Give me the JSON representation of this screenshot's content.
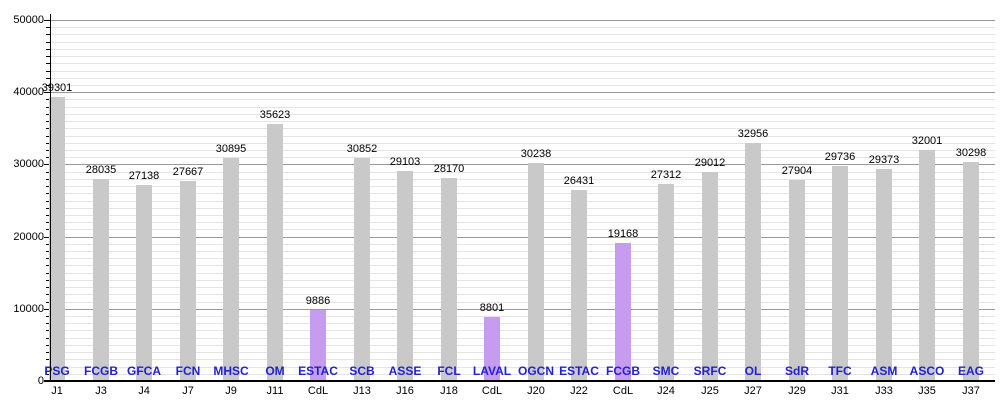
{
  "chart_data": {
    "type": "bar",
    "title": "",
    "xlabel": "",
    "ylabel": "",
    "ylim": [
      0,
      50000
    ],
    "y_major_step": 10000,
    "y_minor_step": 1000,
    "y_ticks": [
      0,
      10000,
      20000,
      30000,
      40000,
      50000
    ],
    "grid": "on",
    "legend_position": "none",
    "bars": [
      {
        "team": "PSG",
        "match": "J1",
        "value": 39301,
        "highlight": false
      },
      {
        "team": "FCGB",
        "match": "J3",
        "value": 28035,
        "highlight": false
      },
      {
        "team": "GFCA",
        "match": "J4",
        "value": 27138,
        "highlight": false
      },
      {
        "team": "FCN",
        "match": "J7",
        "value": 27667,
        "highlight": false
      },
      {
        "team": "MHSC",
        "match": "J9",
        "value": 30895,
        "highlight": false
      },
      {
        "team": "OM",
        "match": "J11",
        "value": 35623,
        "highlight": false
      },
      {
        "team": "ESTAC",
        "match": "CdL",
        "value": 9886,
        "highlight": true
      },
      {
        "team": "SCB",
        "match": "J13",
        "value": 30852,
        "highlight": false
      },
      {
        "team": "ASSE",
        "match": "J16",
        "value": 29103,
        "highlight": false
      },
      {
        "team": "FCL",
        "match": "J18",
        "value": 28170,
        "highlight": false
      },
      {
        "team": "LAVAL",
        "match": "CdL",
        "value": 8801,
        "highlight": true
      },
      {
        "team": "OGCN",
        "match": "J20",
        "value": 30238,
        "highlight": false
      },
      {
        "team": "ESTAC",
        "match": "J22",
        "value": 26431,
        "highlight": false
      },
      {
        "team": "FCGB",
        "match": "CdL",
        "value": 19168,
        "highlight": true
      },
      {
        "team": "SMC",
        "match": "J24",
        "value": 27312,
        "highlight": false
      },
      {
        "team": "SRFC",
        "match": "J25",
        "value": 29012,
        "highlight": false
      },
      {
        "team": "OL",
        "match": "J27",
        "value": 32956,
        "highlight": false
      },
      {
        "team": "SdR",
        "match": "J29",
        "value": 27904,
        "highlight": false
      },
      {
        "team": "TFC",
        "match": "J31",
        "value": 29736,
        "highlight": false
      },
      {
        "team": "ASM",
        "match": "J33",
        "value": 29373,
        "highlight": false
      },
      {
        "team": "ASCO",
        "match": "J35",
        "value": 32001,
        "highlight": false
      },
      {
        "team": "EAG",
        "match": "J37",
        "value": 30298,
        "highlight": false
      }
    ],
    "colors": {
      "bar": "#c9c9c9",
      "highlight_bar": "#c79bef",
      "team_label": "#2222cc",
      "grid_minor": "#e4e4e4",
      "grid_major": "#999999",
      "axis": "#000000",
      "text": "#000000",
      "background": "#ffffff"
    }
  }
}
